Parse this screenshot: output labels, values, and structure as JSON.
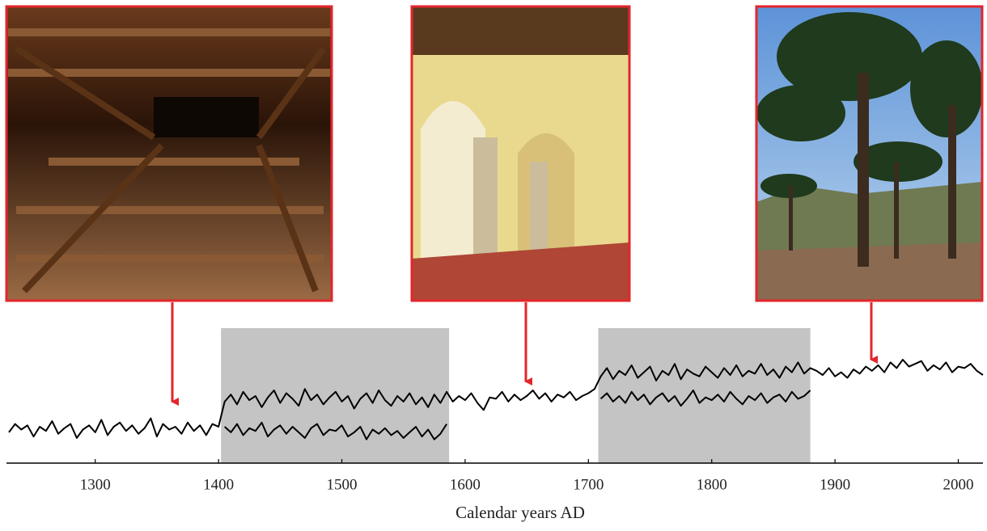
{
  "chart_data": {
    "type": "line",
    "x_label": "Calendar years AD",
    "xlim": [
      1228,
      2020
    ],
    "xticks": [
      1300,
      1400,
      1500,
      1600,
      1700,
      1800,
      1900,
      2000
    ],
    "ylim": [
      0,
      100
    ],
    "color": "#000000",
    "shade_color": "#c4c4c4",
    "shaded_periods": [
      [
        1402,
        1587
      ],
      [
        1708,
        1880
      ]
    ],
    "x": [
      1230,
      1235,
      1240,
      1245,
      1250,
      1255,
      1260,
      1265,
      1270,
      1275,
      1280,
      1285,
      1290,
      1295,
      1300,
      1305,
      1310,
      1315,
      1320,
      1325,
      1330,
      1335,
      1340,
      1345,
      1350,
      1355,
      1360,
      1365,
      1370,
      1375,
      1380,
      1385,
      1390,
      1395,
      1400,
      1405,
      1410,
      1415,
      1420,
      1425,
      1430,
      1435,
      1440,
      1445,
      1450,
      1455,
      1460,
      1465,
      1470,
      1475,
      1480,
      1485,
      1490,
      1495,
      1500,
      1505,
      1510,
      1515,
      1520,
      1525,
      1530,
      1535,
      1540,
      1545,
      1550,
      1555,
      1560,
      1565,
      1570,
      1575,
      1580,
      1585,
      1590,
      1595,
      1600,
      1605,
      1610,
      1615,
      1620,
      1625,
      1630,
      1635,
      1640,
      1645,
      1650,
      1655,
      1660,
      1665,
      1670,
      1675,
      1680,
      1685,
      1690,
      1695,
      1700,
      1705,
      1710,
      1715,
      1720,
      1725,
      1730,
      1735,
      1740,
      1745,
      1750,
      1755,
      1760,
      1765,
      1770,
      1775,
      1780,
      1785,
      1790,
      1795,
      1800,
      1805,
      1810,
      1815,
      1820,
      1825,
      1830,
      1835,
      1840,
      1845,
      1850,
      1855,
      1860,
      1865,
      1870,
      1875,
      1880,
      1885,
      1890,
      1895,
      1900,
      1905,
      1910,
      1915,
      1920,
      1925,
      1930,
      1935,
      1940,
      1945,
      1950,
      1955,
      1960,
      1965,
      1970,
      1975,
      1980,
      1985,
      1990,
      1995,
      2000,
      2005,
      2010,
      2015,
      2020
    ],
    "series": [
      {
        "color": "#000000",
        "values": [
          22,
          28,
          24,
          27,
          19,
          26,
          23,
          30,
          21,
          25,
          28,
          18,
          24,
          27,
          22,
          31,
          20,
          26,
          29,
          23,
          27,
          21,
          25,
          32,
          19,
          28,
          24,
          26,
          21,
          29,
          23,
          27,
          20,
          28,
          26,
          44,
          49,
          42,
          51,
          45,
          48,
          40,
          47,
          52,
          43,
          50,
          46,
          41,
          53,
          45,
          49,
          42,
          47,
          51,
          44,
          48,
          39,
          46,
          50,
          43,
          52,
          45,
          41,
          48,
          44,
          50,
          42,
          47,
          40,
          49,
          43,
          51,
          44,
          48,
          45,
          50,
          43,
          38,
          47,
          46,
          51,
          44,
          49,
          45,
          48,
          52,
          46,
          50,
          44,
          49,
          47,
          51,
          45,
          48,
          50,
          53,
          62,
          68,
          60,
          66,
          63,
          70,
          61,
          65,
          69,
          59,
          66,
          63,
          71,
          60,
          67,
          64,
          62,
          69,
          65,
          61,
          68,
          63,
          70,
          62,
          66,
          64,
          71,
          63,
          67,
          61,
          69,
          65,
          72,
          64,
          68,
          66,
          63,
          68,
          62,
          65,
          61,
          67,
          64,
          69,
          66,
          70,
          65,
          72,
          68,
          74,
          69,
          71,
          73,
          66,
          70,
          67,
          72,
          65,
          69,
          68,
          71,
          66,
          63
        ]
      },
      {
        "color": "#000000",
        "values": [
          null,
          null,
          null,
          null,
          null,
          null,
          null,
          null,
          null,
          null,
          null,
          null,
          null,
          null,
          null,
          null,
          null,
          null,
          null,
          null,
          null,
          null,
          null,
          null,
          null,
          null,
          null,
          null,
          null,
          null,
          null,
          null,
          null,
          null,
          null,
          26,
          22,
          28,
          20,
          25,
          23,
          29,
          19,
          24,
          27,
          21,
          26,
          22,
          18,
          25,
          28,
          20,
          24,
          23,
          27,
          19,
          22,
          26,
          17,
          24,
          21,
          25,
          20,
          23,
          18,
          22,
          26,
          19,
          24,
          17,
          21,
          28,
          null,
          null,
          null,
          null,
          null,
          null,
          null,
          null,
          null,
          null,
          null,
          null,
          null,
          null,
          null,
          null,
          null,
          null,
          null,
          null,
          null,
          null,
          null,
          null,
          46,
          50,
          44,
          48,
          43,
          51,
          45,
          49,
          42,
          47,
          50,
          44,
          48,
          41,
          46,
          52,
          43,
          47,
          45,
          49,
          44,
          51,
          46,
          42,
          48,
          45,
          50,
          43,
          47,
          49,
          44,
          51,
          46,
          48,
          52,
          null,
          null,
          null,
          null,
          null,
          null,
          null,
          null,
          null,
          null,
          null,
          null,
          null,
          null,
          null,
          null,
          null,
          null,
          null,
          null,
          null,
          null,
          null,
          null,
          null,
          null,
          null,
          null
        ]
      }
    ]
  }
}
